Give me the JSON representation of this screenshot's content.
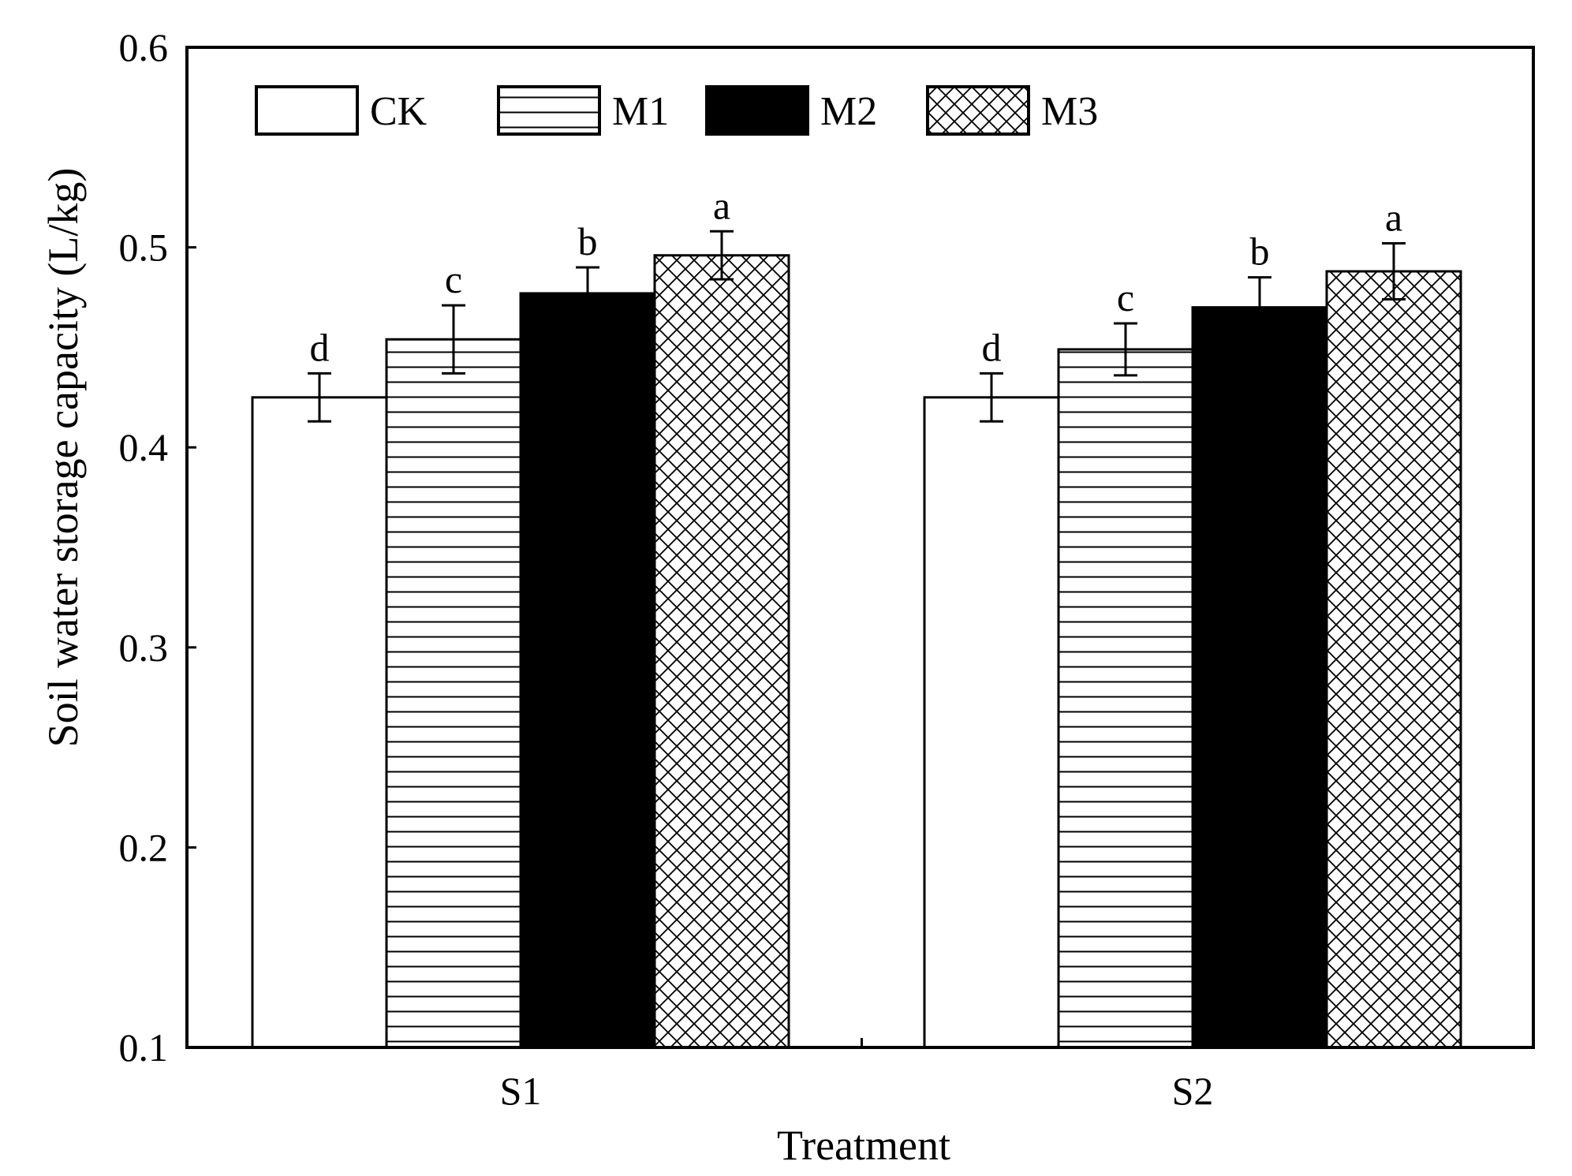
{
  "chart_data": {
    "type": "bar",
    "title": "",
    "xlabel": "Treatment",
    "ylabel": "Soil water storage capacity (L/kg)",
    "categories": [
      "S1",
      "S2"
    ],
    "ylim": [
      0.1,
      0.6
    ],
    "yticks": [
      "0.1",
      "0.2",
      "0.3",
      "0.4",
      "0.5",
      "0.6"
    ],
    "legend_position": "top-left",
    "grid": false,
    "series": [
      {
        "name": "CK",
        "pattern": "none",
        "fill": "#ffffff",
        "values": [
          0.425,
          0.425
        ],
        "errors": [
          0.012,
          0.012
        ],
        "labels": [
          "d",
          "d"
        ]
      },
      {
        "name": "M1",
        "pattern": "horizontal-lines",
        "fill": "#ffffff",
        "values": [
          0.454,
          0.449
        ],
        "errors": [
          0.017,
          0.013
        ],
        "labels": [
          "c",
          "c"
        ]
      },
      {
        "name": "M2",
        "pattern": "solid",
        "fill": "#000000",
        "values": [
          0.477,
          0.47
        ],
        "errors": [
          0.013,
          0.015
        ],
        "labels": [
          "b",
          "b"
        ]
      },
      {
        "name": "M3",
        "pattern": "crosshatch",
        "fill": "#ffffff",
        "values": [
          0.496,
          0.488
        ],
        "errors": [
          0.012,
          0.014
        ],
        "labels": [
          "a",
          "a"
        ]
      }
    ]
  }
}
